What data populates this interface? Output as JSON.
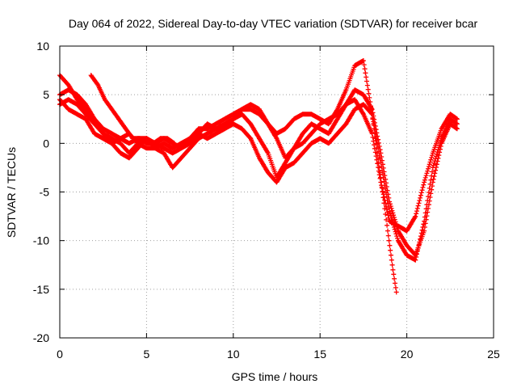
{
  "chart_data": {
    "type": "scatter",
    "title": "Day 064 of 2022, Sidereal Day-to-day VTEC variation (SDTVAR) for receiver bcar",
    "xlabel": "GPS time / hours",
    "ylabel": "SDTVAR / TECUs",
    "xlim": [
      0,
      25
    ],
    "ylim": [
      -20,
      10
    ],
    "x_ticks": [
      0,
      5,
      10,
      15,
      20,
      25
    ],
    "y_ticks": [
      -20,
      -15,
      -10,
      -5,
      0,
      5,
      10
    ],
    "x_tick_labels": [
      "0",
      "5",
      "10",
      "15",
      "20",
      "25"
    ],
    "y_tick_labels": [
      "-20",
      "-15",
      "-10",
      "-5",
      "0",
      "5",
      "10"
    ],
    "grid": true,
    "legend": "none",
    "marker": "+",
    "series_color": "#ff0000",
    "series": [
      {
        "x": [
          0.0,
          0.5,
          1.0,
          1.5,
          2.0,
          2.5,
          3.0,
          3.5,
          4.0,
          4.5,
          5.0,
          5.5,
          6.0,
          6.5,
          7.0,
          7.5,
          8.0,
          8.5,
          9.0,
          9.5,
          10.0,
          10.5,
          11.0,
          11.5,
          12.0,
          12.5,
          13.0,
          13.5,
          14.0,
          14.5,
          15.0,
          15.5,
          16.0,
          16.5,
          17.0,
          17.5,
          18.0,
          18.3,
          18.6,
          18.9,
          19.2,
          19.4
        ],
        "y": [
          7.0,
          6.0,
          4.5,
          3.5,
          2.5,
          1.5,
          1.0,
          0.5,
          0.0,
          0.5,
          0.5,
          0.0,
          -0.5,
          -1.0,
          -0.5,
          0.5,
          1.5,
          1.5,
          2.0,
          2.5,
          3.0,
          3.5,
          3.5,
          3.0,
          2.0,
          1.0,
          1.5,
          2.5,
          3.0,
          3.0,
          2.5,
          2.0,
          3.5,
          5.5,
          8.0,
          8.5,
          3.0,
          -1.0,
          -5.0,
          -9.0,
          -13.0,
          -15.3
        ]
      },
      {
        "x": [
          0.0,
          0.5,
          1.0,
          1.5,
          2.0,
          2.5,
          3.0,
          3.5,
          4.0,
          4.5,
          5.0,
          5.5,
          6.0,
          6.5,
          7.0,
          7.5,
          8.0,
          8.5,
          9.0,
          9.5,
          10.0,
          10.5,
          11.0,
          11.5,
          12.0,
          12.5,
          13.0,
          13.5,
          14.0,
          14.5,
          15.0,
          15.5,
          16.0,
          16.5,
          17.0,
          17.5,
          18.0,
          18.5,
          19.0,
          19.5,
          20.0,
          20.5,
          21.0,
          21.5,
          22.0,
          22.5,
          22.9
        ],
        "y": [
          5.0,
          5.5,
          5.0,
          4.0,
          2.5,
          1.0,
          0.0,
          -1.0,
          -1.5,
          -0.5,
          0.5,
          0.0,
          0.5,
          0.0,
          -0.5,
          0.0,
          1.0,
          2.0,
          1.5,
          2.0,
          2.5,
          3.0,
          2.0,
          0.5,
          -1.0,
          -3.5,
          -2.0,
          -0.5,
          1.0,
          2.0,
          1.5,
          1.0,
          2.5,
          4.0,
          5.5,
          5.0,
          3.5,
          -1.0,
          -6.0,
          -9.0,
          -10.5,
          -11.5,
          -9.0,
          -4.0,
          0.0,
          2.0,
          1.5
        ]
      },
      {
        "x": [
          0.0,
          0.5,
          1.0,
          1.5,
          2.0,
          2.5,
          3.0,
          3.5,
          4.0,
          4.5,
          5.0,
          5.5,
          6.0,
          6.5,
          7.0,
          7.5,
          8.0,
          8.5,
          9.0,
          9.5,
          10.0,
          10.5,
          11.0,
          11.5,
          12.0,
          12.5,
          13.0,
          13.5,
          14.0,
          14.5,
          15.0,
          15.5,
          16.0,
          16.5,
          17.0,
          17.5,
          18.0,
          18.5,
          19.0,
          19.5,
          20.0,
          20.5,
          21.0,
          21.5,
          22.0,
          22.5,
          22.9
        ],
        "y": [
          4.0,
          4.5,
          4.0,
          3.0,
          2.0,
          1.0,
          0.5,
          0.0,
          -1.0,
          0.0,
          0.5,
          -0.5,
          -1.0,
          -2.5,
          -1.5,
          -0.5,
          0.5,
          1.0,
          1.5,
          1.5,
          2.0,
          1.5,
          0.5,
          -1.5,
          -3.0,
          -4.0,
          -2.5,
          -2.0,
          -1.0,
          0.0,
          0.5,
          0.0,
          1.0,
          2.0,
          3.5,
          4.0,
          3.0,
          -2.0,
          -7.0,
          -10.0,
          -11.5,
          -12.0,
          -8.0,
          -2.5,
          0.5,
          2.5,
          2.0
        ]
      },
      {
        "x": [
          0.0,
          0.5,
          1.0,
          1.5,
          2.0,
          2.5,
          3.0,
          3.5,
          4.0,
          4.5,
          5.0,
          5.5,
          6.0,
          6.5,
          7.0,
          7.5,
          8.0,
          8.5,
          9.0,
          9.5,
          10.0,
          10.5,
          11.0,
          11.5,
          12.0,
          12.5,
          13.0,
          13.5,
          14.0,
          14.5,
          15.0,
          15.5,
          16.0,
          16.5,
          17.0,
          17.5,
          18.0,
          18.5,
          19.0,
          19.5,
          20.0,
          20.5,
          21.0,
          21.5,
          22.0,
          22.5,
          22.9
        ],
        "y": [
          4.5,
          3.5,
          3.0,
          2.5,
          1.0,
          0.5,
          0.0,
          0.5,
          1.0,
          0.0,
          -0.5,
          -0.5,
          0.0,
          -0.5,
          0.0,
          0.5,
          1.0,
          0.5,
          1.0,
          1.5,
          2.5,
          3.5,
          4.0,
          3.5,
          2.0,
          0.5,
          -1.5,
          -0.5,
          0.0,
          1.0,
          2.0,
          2.5,
          3.0,
          4.0,
          4.5,
          3.0,
          1.0,
          -4.0,
          -8.0,
          -8.5,
          -9.0,
          -7.5,
          -4.0,
          -1.0,
          1.5,
          3.0,
          2.5
        ]
      },
      {
        "x": [
          1.8,
          2.2,
          2.6,
          3.0,
          3.4,
          3.8,
          4.2,
          4.6,
          5.0,
          5.4,
          5.8,
          6.2,
          6.6
        ],
        "y": [
          7.0,
          6.0,
          4.5,
          3.5,
          2.5,
          1.5,
          0.5,
          0.5,
          0.0,
          0.0,
          0.5,
          0.5,
          0.0
        ]
      }
    ]
  }
}
